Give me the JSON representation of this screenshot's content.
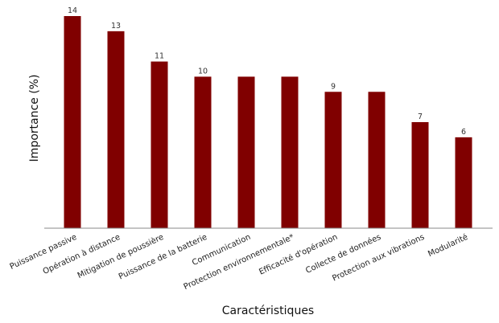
{
  "chart_data": {
    "type": "bar",
    "title": "",
    "xlabel": "Caractéristiques",
    "ylabel": "Importance (%)",
    "categories": [
      "Puissance passive",
      "Opération à distance",
      "Mitigation de poussière",
      "Puissance de la batterie",
      "Communication",
      "Protection environnementale*",
      "Efficacité d'opération",
      "Collecte de données",
      "Protection aux vibrations",
      "Modularité"
    ],
    "values": [
      14,
      13,
      11,
      10,
      10,
      10,
      9,
      9,
      7,
      6
    ],
    "data_labels": [
      "14",
      "13",
      "11",
      "10",
      "",
      "",
      "9",
      "",
      "7",
      "6"
    ],
    "ylim": [
      0,
      14
    ],
    "grid": false,
    "legend": "none",
    "colors": {
      "bar": "#800000",
      "axis": "#888888"
    }
  }
}
